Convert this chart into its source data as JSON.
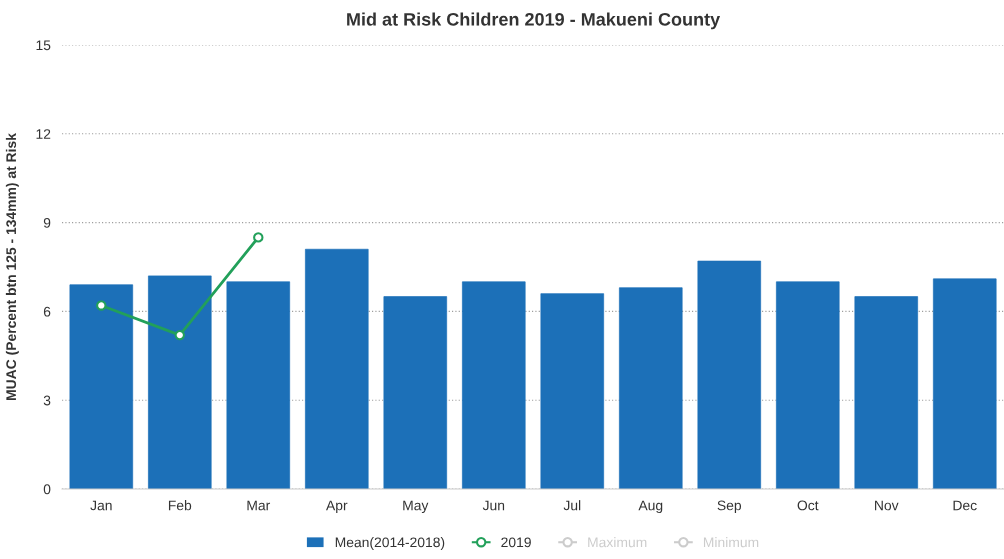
{
  "chart_data": {
    "type": "bar",
    "title": "Mid at Risk Children 2019 - Makueni County",
    "ylabel": "MUAC (Percent btn 125 - 134mm) at Risk",
    "categories": [
      "Jan",
      "Feb",
      "Mar",
      "Apr",
      "May",
      "Jun",
      "Jul",
      "Aug",
      "Sep",
      "Oct",
      "Nov",
      "Dec"
    ],
    "series": [
      {
        "name": "Mean(2014-2018)",
        "color": "#1c70b8",
        "values": [
          6.9,
          7.2,
          7.0,
          8.1,
          6.5,
          7.0,
          6.6,
          6.8,
          7.7,
          7.0,
          6.5,
          7.1
        ]
      },
      {
        "name": "2019",
        "type": "line",
        "color": "#22a05a",
        "values": [
          6.2,
          5.2,
          8.5,
          null,
          null,
          null,
          null,
          null,
          null,
          null,
          null,
          null
        ]
      },
      {
        "name": "Maximum",
        "type": "line",
        "color": "#cccccc",
        "values": [
          null,
          null,
          null,
          null,
          null,
          null,
          null,
          null,
          null,
          null,
          null,
          null
        ]
      },
      {
        "name": "Minimum",
        "type": "line",
        "color": "#cccccc",
        "values": [
          null,
          null,
          null,
          null,
          null,
          null,
          null,
          null,
          null,
          null,
          null,
          null
        ]
      }
    ],
    "ylim": [
      0,
      15
    ],
    "yticks": [
      0,
      3,
      6,
      9,
      12,
      15
    ],
    "grid": "y",
    "legend": "bottom",
    "marker": "circle"
  }
}
